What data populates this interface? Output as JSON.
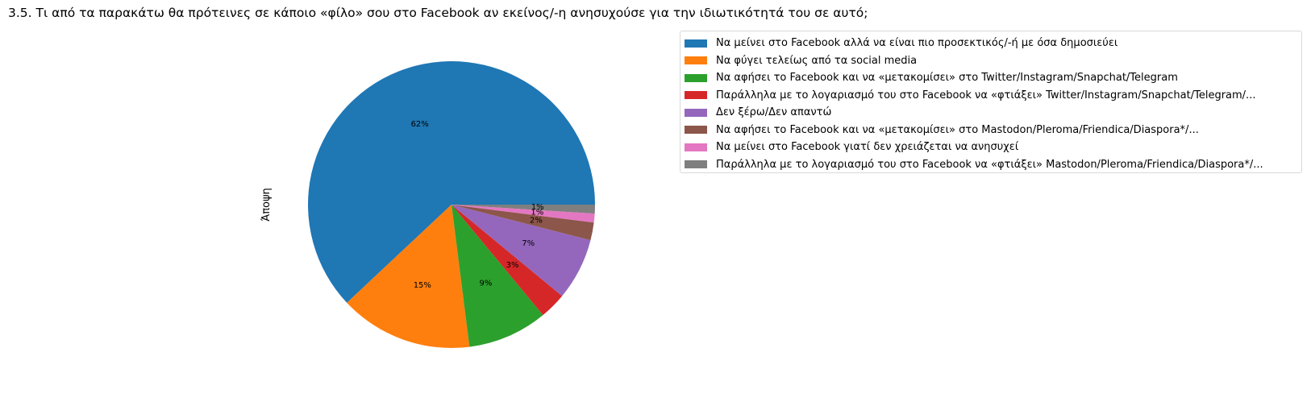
{
  "chart_data": {
    "type": "pie",
    "title": "3.5. Τι από τα παρακάτω θα πρότεινες σε κάποιο «φίλο» σου στο Facebook αν εκείνος/-η ανησυχούσε για την ιδιωτικότητά του σε αυτό;",
    "ylabel": "Άποψη",
    "start_angle_deg": 0,
    "direction": "counterclockwise",
    "legend_position": "upper right, outside plot",
    "slices": [
      {
        "label": "Να μείνει στο Facebook αλλά να είναι πιο προσεκτικός/-ή με όσα δημοσιεύει",
        "value": 62.0,
        "pct_label": "62%",
        "color": "#1f77b4"
      },
      {
        "label": "Να φύγει τελείως από τα social media",
        "value": 15.0,
        "pct_label": "15%",
        "color": "#ff7f0e"
      },
      {
        "label": "Να αφήσει το Facebook και να «μετακομίσει» στο Twitter/Instagram/Snapchat/Telegram",
        "value": 9.0,
        "pct_label": "9%",
        "color": "#2ca02c"
      },
      {
        "label": "Παράλληλα με το λογαριασμό του στο Facebook να «φτιάξει» Twitter/Instagram/Snapchat/Telegram/...",
        "value": 3.0,
        "pct_label": "3%",
        "color": "#d62728"
      },
      {
        "label": "Δεν ξέρω/Δεν απαντώ",
        "value": 7.0,
        "pct_label": "7%",
        "color": "#9467bd"
      },
      {
        "label": "Να αφήσει το Facebook και να «μετακομίσει» στο Mastodon/Pleroma/Friendica/Diaspora*/...",
        "value": 2.0,
        "pct_label": "2%",
        "color": "#8c564b"
      },
      {
        "label": "Να μείνει στο Facebook γιατί δεν χρειάζεται να ανησυχεί",
        "value": 1.0,
        "pct_label": "1%",
        "color": "#e377c2"
      },
      {
        "label": "Παράλληλα με το λογαριασμό του στο Facebook να «φτιάξει» Mastodon/Pleroma/Friendica/Diaspora*/...",
        "value": 1.0,
        "pct_label": "1%",
        "color": "#7f7f7f"
      }
    ]
  }
}
